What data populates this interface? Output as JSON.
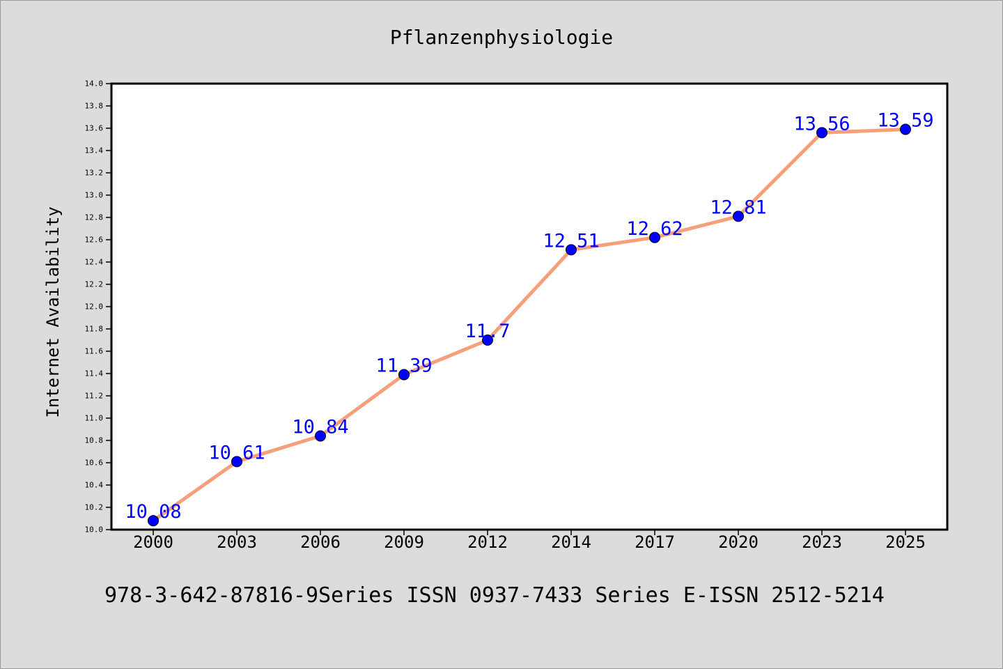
{
  "chart_data": {
    "type": "line",
    "title": "Pflanzenphysiologie",
    "ylabel": "Internet Availability",
    "xlabel": "",
    "categories": [
      "2000",
      "2003",
      "2006",
      "2009",
      "2012",
      "2014",
      "2017",
      "2020",
      "2023",
      "2025"
    ],
    "values": [
      10.08,
      10.61,
      10.84,
      11.39,
      11.7,
      12.51,
      12.62,
      12.81,
      13.56,
      13.59
    ],
    "data_labels": [
      "10.08",
      "10.61",
      "10.84",
      "11.39",
      "11.7",
      "12.51",
      "12.62",
      "12.81",
      "13.56",
      "13.59"
    ],
    "ylim": [
      10.0,
      14.0
    ],
    "yticks": [
      "10.0",
      "10.2",
      "10.4",
      "10.6",
      "10.8",
      "11.0",
      "11.2",
      "11.4",
      "11.6",
      "11.8",
      "12.0",
      "12.2",
      "12.4",
      "12.6",
      "12.8",
      "13.0",
      "13.2",
      "13.4",
      "13.6",
      "13.8",
      "14.0"
    ],
    "grid": false,
    "legend": "none",
    "colors": {
      "line": "#f5a07a",
      "marker": "#0000ff",
      "label": "#0000ff",
      "axis": "#000000",
      "background": "#dcdcdc",
      "plot_area": "#ffffff"
    }
  },
  "footer": "978-3-642-87816-9Series ISSN 0937-7433 Series E-ISSN 2512-5214"
}
